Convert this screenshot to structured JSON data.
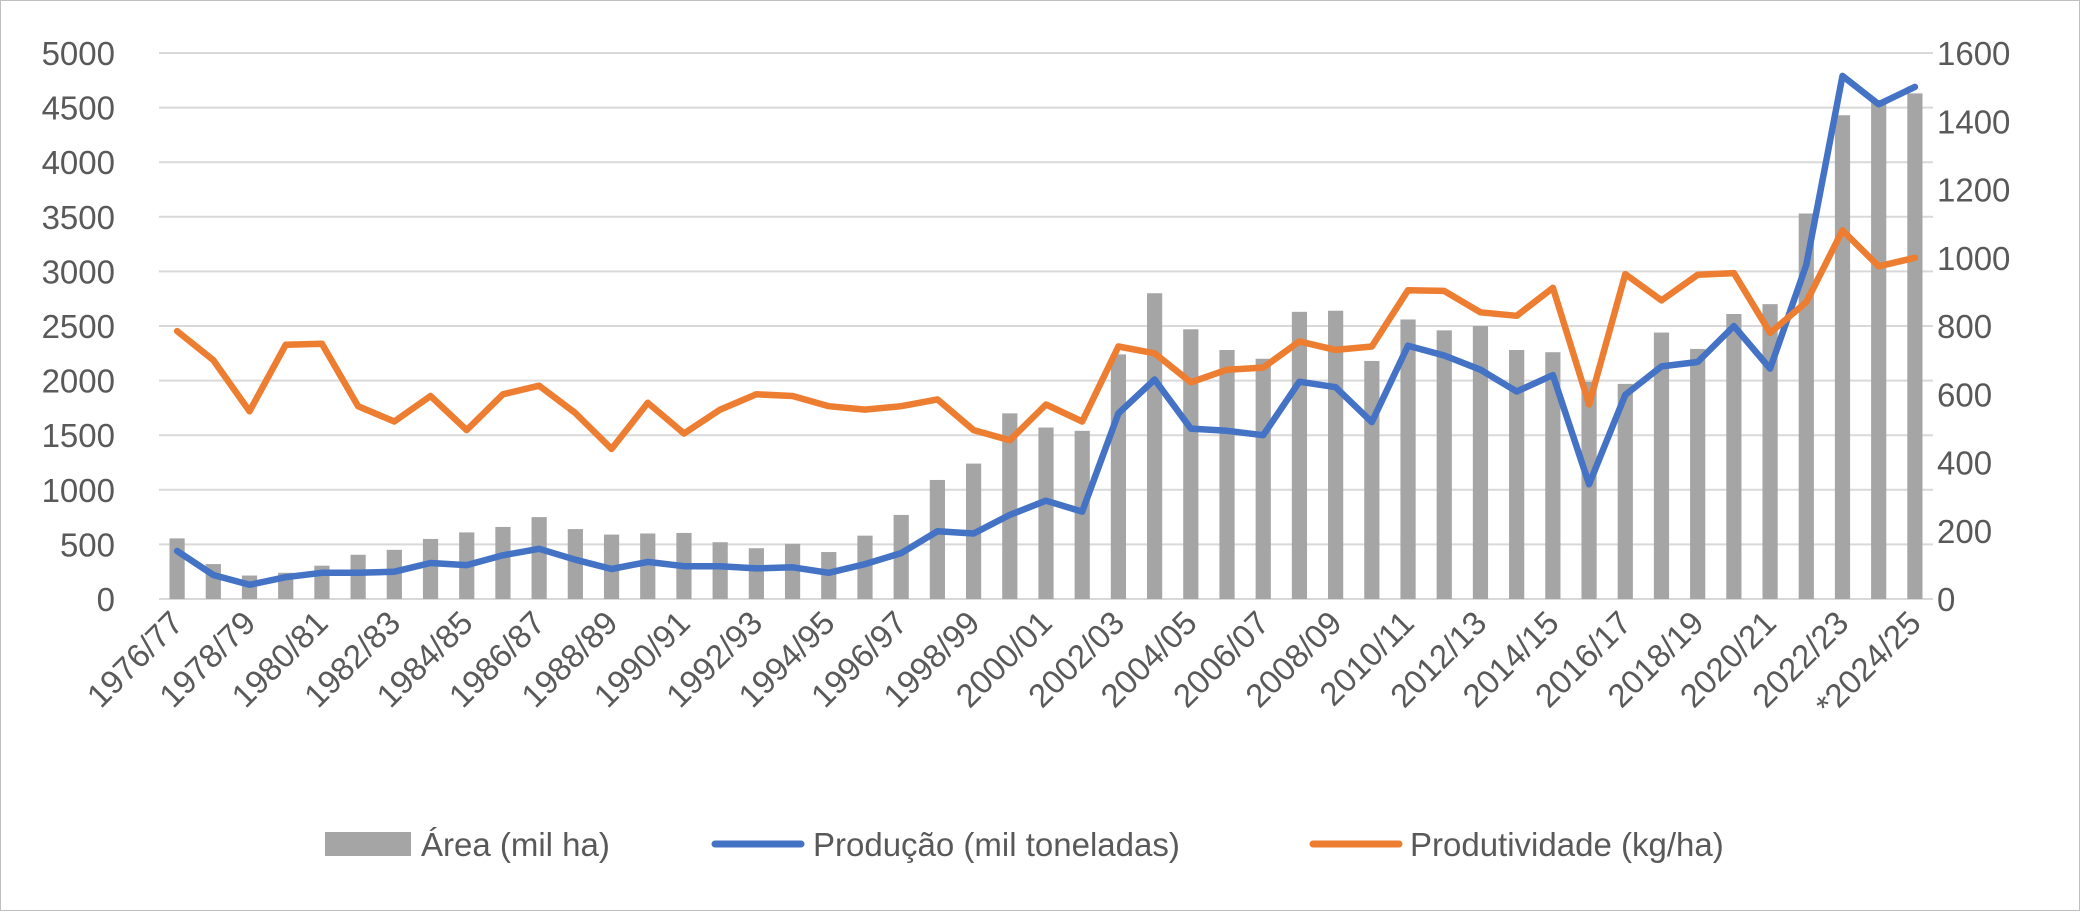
{
  "chart_data": {
    "type": "bar",
    "title": "",
    "x_tick_labels": [
      "1976/77",
      "1978/79",
      "1980/81",
      "1982/83",
      "1984/85",
      "1986/87",
      "1988/89",
      "1990/91",
      "1992/93",
      "1994/95",
      "1996/97",
      "1998/99",
      "2000/01",
      "2002/03",
      "2004/05",
      "2006/07",
      "2008/09",
      "2010/11",
      "2012/13",
      "2014/15",
      "2016/17",
      "2018/19",
      "2020/21",
      "2022/23",
      "*2024/25"
    ],
    "y_left": {
      "min": 0,
      "max": 5000,
      "step": 500,
      "ticks": [
        "0",
        "500",
        "1000",
        "1500",
        "2000",
        "2500",
        "3000",
        "3500",
        "4000",
        "4500",
        "5000"
      ]
    },
    "y_right": {
      "min": 0,
      "max": 1600,
      "step": 200,
      "ticks": [
        "0",
        "200",
        "400",
        "600",
        "800",
        "1000",
        "1200",
        "1400",
        "1600"
      ]
    },
    "grid": true,
    "legend_position": "bottom",
    "series": [
      {
        "name": "Área (mil ha)",
        "kind": "bar",
        "axis": "left",
        "color": "#a5a5a5",
        "values": [
          555,
          320,
          215,
          240,
          305,
          405,
          450,
          550,
          610,
          660,
          750,
          640,
          590,
          600,
          605,
          520,
          465,
          505,
          430,
          580,
          770,
          1090,
          1240,
          1700,
          1570,
          1540,
          2240,
          2800,
          2470,
          2280,
          2200,
          2630,
          2640,
          2180,
          2560,
          2460,
          2500,
          2280,
          2260,
          1990,
          1970,
          2440,
          2290,
          2610,
          2700,
          3530,
          4430,
          4570,
          4630
        ]
      },
      {
        "name": "Produção (mil toneladas)",
        "kind": "line",
        "axis": "left",
        "color": "#4472c4",
        "values": [
          440,
          220,
          130,
          200,
          240,
          240,
          250,
          330,
          310,
          400,
          460,
          360,
          275,
          340,
          300,
          300,
          280,
          290,
          240,
          320,
          420,
          620,
          600,
          770,
          900,
          800,
          1700,
          2010,
          1560,
          1540,
          1500,
          1990,
          1940,
          1620,
          2320,
          2230,
          2100,
          1900,
          2050,
          1050,
          1870,
          2130,
          2170,
          2500,
          2110,
          3060,
          4790,
          4530,
          4690
        ]
      },
      {
        "name": "Produtividade (kg/ha)",
        "kind": "line",
        "axis": "right",
        "color": "#ed7d31",
        "values": [
          785,
          700,
          550,
          745,
          748,
          565,
          520,
          595,
          495,
          600,
          625,
          545,
          440,
          575,
          485,
          555,
          600,
          595,
          565,
          555,
          565,
          585,
          495,
          465,
          570,
          520,
          740,
          720,
          635,
          672,
          678,
          755,
          730,
          740,
          905,
          903,
          840,
          830,
          912,
          570,
          952,
          875,
          950,
          955,
          780,
          870,
          1080,
          975,
          1000
        ]
      }
    ]
  }
}
